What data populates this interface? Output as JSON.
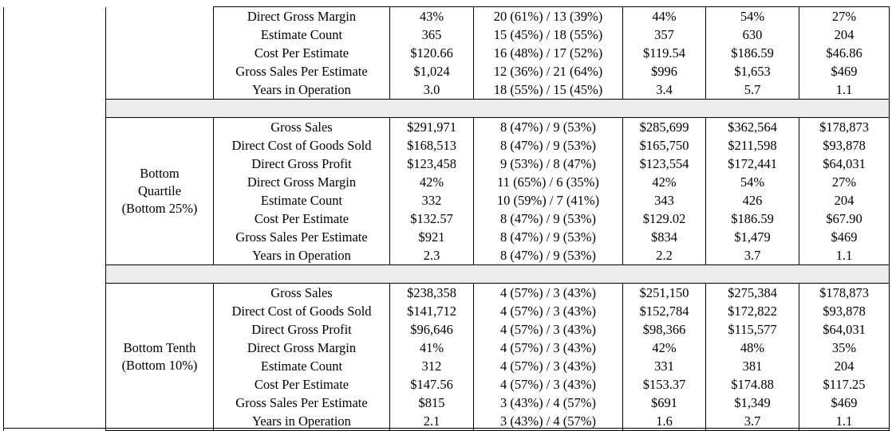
{
  "sections": [
    {
      "group_label": [],
      "rows": [
        {
          "metric": "Direct Gross Margin",
          "c1": "43%",
          "c2": "20 (61%) / 13 (39%)",
          "c3": "44%",
          "c4": "54%",
          "c5": "27%"
        },
        {
          "metric": "Estimate Count",
          "c1": "365",
          "c2": "15 (45%) / 18 (55%)",
          "c3": "357",
          "c4": "630",
          "c5": "204"
        },
        {
          "metric": "Cost Per Estimate",
          "c1": "$120.66",
          "c2": "16 (48%) / 17 (52%)",
          "c3": "$119.54",
          "c4": "$186.59",
          "c5": "$46.86"
        },
        {
          "metric": "Gross Sales Per Estimate",
          "c1": "$1,024",
          "c2": "12 (36%) / 21 (64%)",
          "c3": "$996",
          "c4": "$1,653",
          "c5": "$469"
        },
        {
          "metric": "Years in Operation",
          "c1": "3.0",
          "c2": "18 (55%) / 15 (45%)",
          "c3": "3.4",
          "c4": "5.7",
          "c5": "1.1"
        }
      ]
    },
    {
      "group_label": [
        "Bottom",
        "Quartile",
        "(Bottom 25%)"
      ],
      "rows": [
        {
          "metric": "Gross Sales",
          "c1": "$291,971",
          "c2": "8 (47%) / 9 (53%)",
          "c3": "$285,699",
          "c4": "$362,564",
          "c5": "$178,873"
        },
        {
          "metric": "Direct Cost of Goods Sold",
          "c1": "$168,513",
          "c2": "8 (47%) / 9 (53%)",
          "c3": "$165,750",
          "c4": "$211,598",
          "c5": "$93,878"
        },
        {
          "metric": "Direct Gross Profit",
          "c1": "$123,458",
          "c2": "9 (53%) / 8 (47%)",
          "c3": "$123,554",
          "c4": "$172,441",
          "c5": "$64,031"
        },
        {
          "metric": "Direct Gross Margin",
          "c1": "42%",
          "c2": "11 (65%) / 6 (35%)",
          "c3": "42%",
          "c4": "54%",
          "c5": "27%"
        },
        {
          "metric": "Estimate Count",
          "c1": "332",
          "c2": "10 (59%) / 7 (41%)",
          "c3": "343",
          "c4": "426",
          "c5": "204"
        },
        {
          "metric": "Cost Per Estimate",
          "c1": "$132.57",
          "c2": "8 (47%) / 9 (53%)",
          "c3": "$129.02",
          "c4": "$186.59",
          "c5": "$67.90"
        },
        {
          "metric": "Gross Sales Per Estimate",
          "c1": "$921",
          "c2": "8 (47%) / 9 (53%)",
          "c3": "$834",
          "c4": "$1,479",
          "c5": "$469"
        },
        {
          "metric": "Years in Operation",
          "c1": "2.3",
          "c2": "8 (47%) / 9 (53%)",
          "c3": "2.2",
          "c4": "3.7",
          "c5": "1.1"
        }
      ]
    },
    {
      "group_label": [
        "Bottom Tenth",
        "(Bottom 10%)"
      ],
      "rows": [
        {
          "metric": "Gross Sales",
          "c1": "$238,358",
          "c2": "4 (57%) / 3 (43%)",
          "c3": "$251,150",
          "c4": "$275,384",
          "c5": "$178,873"
        },
        {
          "metric": "Direct Cost of Goods Sold",
          "c1": "$141,712",
          "c2": "4 (57%) / 3 (43%)",
          "c3": "$152,784",
          "c4": "$172,822",
          "c5": "$93,878"
        },
        {
          "metric": "Direct Gross Profit",
          "c1": "$96,646",
          "c2": "4 (57%) / 3 (43%)",
          "c3": "$98,366",
          "c4": "$115,577",
          "c5": "$64,031"
        },
        {
          "metric": "Direct Gross Margin",
          "c1": "41%",
          "c2": "4 (57%) / 3 (43%)",
          "c3": "42%",
          "c4": "48%",
          "c5": "35%"
        },
        {
          "metric": "Estimate Count",
          "c1": "312",
          "c2": "4 (57%) / 3 (43%)",
          "c3": "331",
          "c4": "381",
          "c5": "204"
        },
        {
          "metric": "Cost Per Estimate",
          "c1": "$147.56",
          "c2": "4 (57%) / 3 (43%)",
          "c3": "$153.37",
          "c4": "$174.88",
          "c5": "$117.25"
        },
        {
          "metric": "Gross Sales Per Estimate",
          "c1": "$815",
          "c2": "3 (43%) / 4 (57%)",
          "c3": "$691",
          "c4": "$1,349",
          "c5": "$469"
        },
        {
          "metric": "Years in Operation",
          "c1": "2.1",
          "c2": "3 (43%) / 4 (57%)",
          "c3": "1.6",
          "c4": "3.7",
          "c5": "1.1"
        }
      ]
    }
  ],
  "colors": {
    "separator": "#ececec",
    "border": "#000000",
    "text": "#000000"
  }
}
